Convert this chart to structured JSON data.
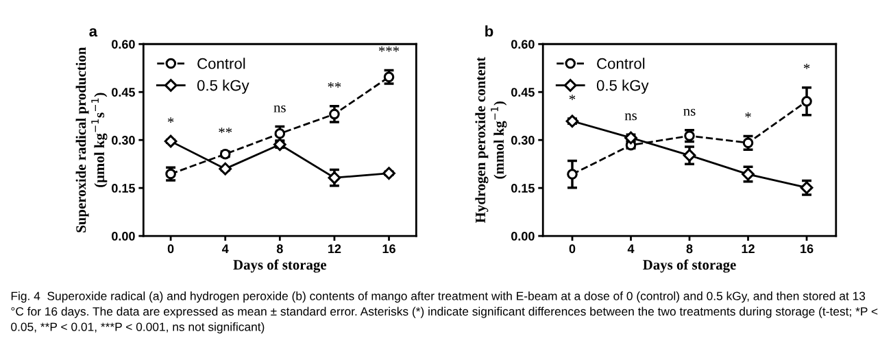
{
  "chart_data": [
    {
      "type": "line",
      "title": "a",
      "xlabel": "Days of storage",
      "ylabel": "Superoxide radical production\n(μmol kg$^{−1}$s$^{−1}$)",
      "x": [
        0,
        4,
        8,
        12,
        16
      ],
      "xlim": [
        -2,
        18
      ],
      "xticks": [
        0,
        4,
        8,
        12,
        16
      ],
      "ylim": [
        0,
        0.6
      ],
      "yticks": [
        {
          "value": 0,
          "label": "0.00"
        },
        {
          "value": 0.15,
          "label": "0.15"
        },
        {
          "value": 0.3,
          "label": "0.30"
        },
        {
          "value": 0.45,
          "label": "0.45"
        },
        {
          "value": 0.6,
          "label": "0.60"
        }
      ],
      "legend": "top left",
      "grid": false,
      "series": [
        {
          "name": "Control",
          "color": "#000000",
          "marker": "circle",
          "line_style": "dashed",
          "values": [
            0.194,
            0.256,
            0.32,
            0.381,
            0.497
          ],
          "errors": [
            0.02,
            0.008,
            0.022,
            0.025,
            0.021
          ]
        },
        {
          "name": "0.5 kGy",
          "color": "#000000",
          "marker": "diamond",
          "line_style": "solid",
          "values": [
            0.296,
            0.21,
            0.286,
            0.182,
            0.196
          ],
          "errors": [
            0.005,
            0.005,
            0.01,
            0.025,
            0.005
          ]
        }
      ],
      "annotations": [
        {
          "text": "*",
          "x": 0,
          "y": 0.296
        },
        {
          "text": "**",
          "x": 4,
          "y": 0.264
        },
        {
          "text": "ns",
          "x": 8,
          "y": 0.342
        },
        {
          "text": "**",
          "x": 12,
          "y": 0.406
        },
        {
          "text": "***",
          "x": 16,
          "y": 0.518
        },
        "Fig. 4  Superoxide radical (a) and hydrogen peroxide (b) contents of mango after treatment with E-beam at a dose of 0 (control) and 0.5 kGy, and then stored at 13 °C for 16 days. The data are expressed as mean ± standard error. Asterisks (*) indicate significant differences between the two treatments during storage (t-test; *P < 0.05, **P < 0.01, ***P < 0.001, ns not significant)"
      ]
    },
    {
      "type": "line",
      "title": "b",
      "xlabel": "Days of storage",
      "ylabel": "Hydrogen peroxide content\n(mmol kg$^{−1}$)",
      "x": [
        0,
        4,
        8,
        12,
        16
      ],
      "xlim": [
        -2,
        18
      ],
      "xticks": [
        0,
        4,
        8,
        12,
        16
      ],
      "ylim": [
        0,
        0.6
      ],
      "yticks": [
        {
          "value": 0,
          "label": "0.00"
        },
        {
          "value": 0.15,
          "label": "0.15"
        },
        {
          "value": 0.3,
          "label": "0.30"
        },
        {
          "value": 0.45,
          "label": "0.45"
        },
        {
          "value": 0.6,
          "label": "0.60"
        }
      ],
      "legend": "top left",
      "grid": false,
      "series": [
        {
          "name": "Control",
          "color": "#000000",
          "marker": "circle",
          "line_style": "dashed",
          "values": [
            0.193,
            0.284,
            0.313,
            0.291,
            0.421
          ],
          "errors": [
            0.042,
            0.01,
            0.018,
            0.021,
            0.043
          ]
        },
        {
          "name": "0.5 kGy",
          "color": "#000000",
          "marker": "diamond",
          "line_style": "solid",
          "values": [
            0.359,
            0.307,
            0.252,
            0.193,
            0.151
          ],
          "errors": [
            0.008,
            0.01,
            0.027,
            0.023,
            0.022
          ]
        }
      ],
      "annotations": [
        {
          "text": "*",
          "x": 0,
          "y": 0.367
        },
        {
          "text": "ns",
          "x": 4,
          "y": 0.317
        },
        {
          "text": "ns",
          "x": 8,
          "y": 0.331
        },
        {
          "text": "*",
          "x": 12,
          "y": 0.312
        },
        {
          "text": "*",
          "x": 16,
          "y": 0.464
        }
      ]
    }
  ]
}
